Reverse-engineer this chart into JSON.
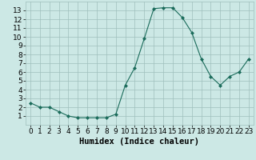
{
  "x": [
    0,
    1,
    2,
    3,
    4,
    5,
    6,
    7,
    8,
    9,
    10,
    11,
    12,
    13,
    14,
    15,
    16,
    17,
    18,
    19,
    20,
    21,
    22,
    23
  ],
  "y": [
    2.5,
    2.0,
    2.0,
    1.5,
    1.0,
    0.8,
    0.8,
    0.8,
    0.8,
    1.2,
    4.5,
    6.5,
    9.8,
    13.2,
    13.3,
    13.3,
    12.2,
    10.5,
    7.5,
    5.5,
    4.5,
    5.5,
    6.0,
    7.5
  ],
  "line_color": "#1a6b5a",
  "marker": "D",
  "marker_size": 2.0,
  "bg_color": "#cce8e5",
  "grid_color": "#9fbfbc",
  "xlabel": "Humidex (Indice chaleur)",
  "xlim": [
    -0.5,
    23.5
  ],
  "ylim": [
    0,
    14
  ],
  "yticks": [
    1,
    2,
    3,
    4,
    5,
    6,
    7,
    8,
    9,
    10,
    11,
    12,
    13
  ],
  "xticks": [
    0,
    1,
    2,
    3,
    4,
    5,
    6,
    7,
    8,
    9,
    10,
    11,
    12,
    13,
    14,
    15,
    16,
    17,
    18,
    19,
    20,
    21,
    22,
    23
  ],
  "tick_label_size": 6.5,
  "xlabel_size": 7.5,
  "linewidth": 0.8
}
